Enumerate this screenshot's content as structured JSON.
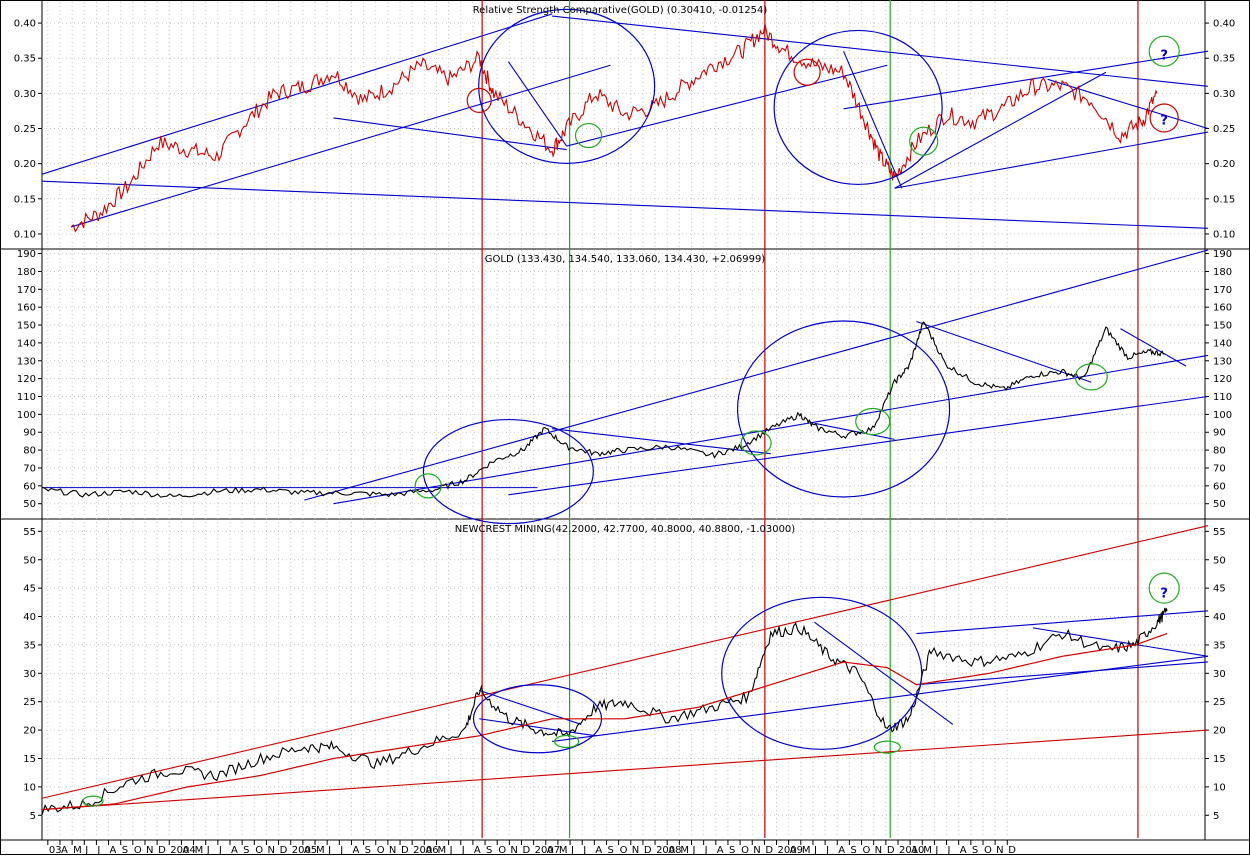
{
  "chart_data": [
    {
      "type": "line",
      "title": "Relative Strength Comparative(GOLD) (0.30410, -0.01254)",
      "ylim": [
        0.08,
        0.43
      ],
      "yticks": [
        0.1,
        0.15,
        0.2,
        0.25,
        0.3,
        0.35,
        0.4
      ],
      "grid": true,
      "series": [
        {
          "color": "#d00000",
          "x": [
            2003.2,
            2003.4,
            2003.6,
            2003.8,
            2004.0,
            2004.2,
            2004.4,
            2004.6,
            2004.8,
            2005.0,
            2005.2,
            2005.4,
            2005.6,
            2005.8,
            2006.0,
            2006.1,
            2006.3,
            2006.5,
            2006.6,
            2006.8,
            2007.0,
            2007.2,
            2007.4,
            2007.6,
            2007.8,
            2007.95,
            2008.1,
            2008.3,
            2008.5,
            2008.65,
            2008.75,
            2008.85,
            2009.0,
            2009.2,
            2009.4,
            2009.6,
            2009.8,
            2010.0,
            2010.2,
            2010.4,
            2010.55,
            2010.65
          ],
          "values": [
            0.11,
            0.13,
            0.17,
            0.23,
            0.22,
            0.21,
            0.26,
            0.3,
            0.31,
            0.33,
            0.29,
            0.31,
            0.34,
            0.32,
            0.35,
            0.3,
            0.26,
            0.22,
            0.25,
            0.3,
            0.27,
            0.28,
            0.31,
            0.34,
            0.36,
            0.39,
            0.36,
            0.34,
            0.33,
            0.26,
            0.21,
            0.18,
            0.23,
            0.27,
            0.26,
            0.28,
            0.31,
            0.31,
            0.29,
            0.24,
            0.26,
            0.3
          ]
        }
      ]
    },
    {
      "type": "line",
      "title": "GOLD (133.430, 134.540, 133.060, 134.430, +2.06999)",
      "ylim": [
        42,
        192
      ],
      "yticks": [
        50,
        60,
        70,
        80,
        90,
        100,
        110,
        120,
        130,
        140,
        150,
        160,
        170,
        180,
        190
      ],
      "grid": true,
      "series": [
        {
          "color": "#000000",
          "x": [
            2003.0,
            2003.3,
            2003.6,
            2003.9,
            2004.2,
            2004.5,
            2004.8,
            2005.1,
            2005.4,
            2005.7,
            2005.9,
            2006.1,
            2006.3,
            2006.45,
            2006.6,
            2006.8,
            2007.0,
            2007.3,
            2007.6,
            2007.8,
            2008.0,
            2008.2,
            2008.3,
            2008.5,
            2008.7,
            2008.85,
            2008.95,
            2009.05,
            2009.2,
            2009.4,
            2009.6,
            2009.8,
            2010.0,
            2010.15,
            2010.3,
            2010.45,
            2010.6,
            2010.7
          ],
          "values": [
            58,
            55,
            57,
            54,
            57,
            58,
            56,
            56,
            55,
            58,
            63,
            74,
            80,
            92,
            82,
            78,
            80,
            82,
            77,
            82,
            92,
            100,
            93,
            88,
            92,
            118,
            127,
            152,
            128,
            118,
            114,
            122,
            124,
            120,
            148,
            132,
            135,
            134
          ]
        }
      ]
    },
    {
      "type": "line",
      "title": "NEWCREST MINING(42.2000, 42.7700, 40.8000, 40.8800, -1.03000)",
      "ylim": [
        1,
        57
      ],
      "yticks": [
        5,
        10,
        15,
        20,
        25,
        30,
        35,
        40,
        45,
        50,
        55
      ],
      "grid": true,
      "xticks": [
        "03",
        "A",
        "M",
        "J",
        "J",
        "A",
        "S",
        "O",
        "N",
        "D",
        "2004",
        "A",
        "M",
        "J",
        "J",
        "A",
        "S",
        "O",
        "N",
        "D",
        "2005",
        "A",
        "M",
        "J",
        "J",
        "A",
        "S",
        "O",
        "N",
        "D",
        "2006",
        "A",
        "M",
        "J",
        "J",
        "A",
        "S",
        "O",
        "N",
        "D",
        "2007",
        "A",
        "M",
        "J",
        "J",
        "A",
        "S",
        "O",
        "N",
        "D",
        "2008",
        "A",
        "M",
        "J",
        "J",
        "A",
        "S",
        "O",
        "N",
        "D",
        "2009",
        "A",
        "M",
        "J",
        "J",
        "A",
        "S",
        "O",
        "N",
        "D",
        "2010",
        "A",
        "M",
        "J",
        "J",
        "A",
        "S",
        "O",
        "N",
        "D"
      ],
      "series": [
        {
          "color": "#000000",
          "x": [
            2003.0,
            2003.3,
            2003.6,
            2003.9,
            2004.2,
            2004.5,
            2004.8,
            2005.0,
            2005.3,
            2005.6,
            2005.9,
            2006.0,
            2006.2,
            2006.4,
            2006.6,
            2006.8,
            2007.0,
            2007.3,
            2007.6,
            2007.85,
            2008.0,
            2008.2,
            2008.4,
            2008.6,
            2008.8,
            2008.95,
            2009.1,
            2009.4,
            2009.7,
            2010.0,
            2010.3,
            2010.5,
            2010.65,
            2010.72
          ],
          "values": [
            6,
            7,
            11,
            13,
            12,
            15,
            17,
            17,
            14,
            17,
            20,
            27,
            22,
            20,
            19,
            24,
            25,
            22,
            24,
            26,
            37,
            38,
            33,
            30,
            20,
            22,
            34,
            32,
            33,
            37,
            34,
            35,
            39,
            41
          ]
        },
        {
          "color": "#d00000",
          "x": [
            2003.0,
            2003.5,
            2004.0,
            2004.5,
            2005.0,
            2005.5,
            2006.0,
            2006.5,
            2007.0,
            2007.5,
            2008.0,
            2008.5,
            2008.8,
            2009.0,
            2009.5,
            2010.0,
            2010.5,
            2010.72
          ],
          "values": [
            6,
            7,
            10,
            12,
            15,
            17,
            19,
            22,
            22,
            24,
            28,
            32,
            31,
            28,
            30,
            33,
            35,
            37
          ]
        }
      ]
    }
  ],
  "annotations": {
    "question_mark": "?"
  }
}
